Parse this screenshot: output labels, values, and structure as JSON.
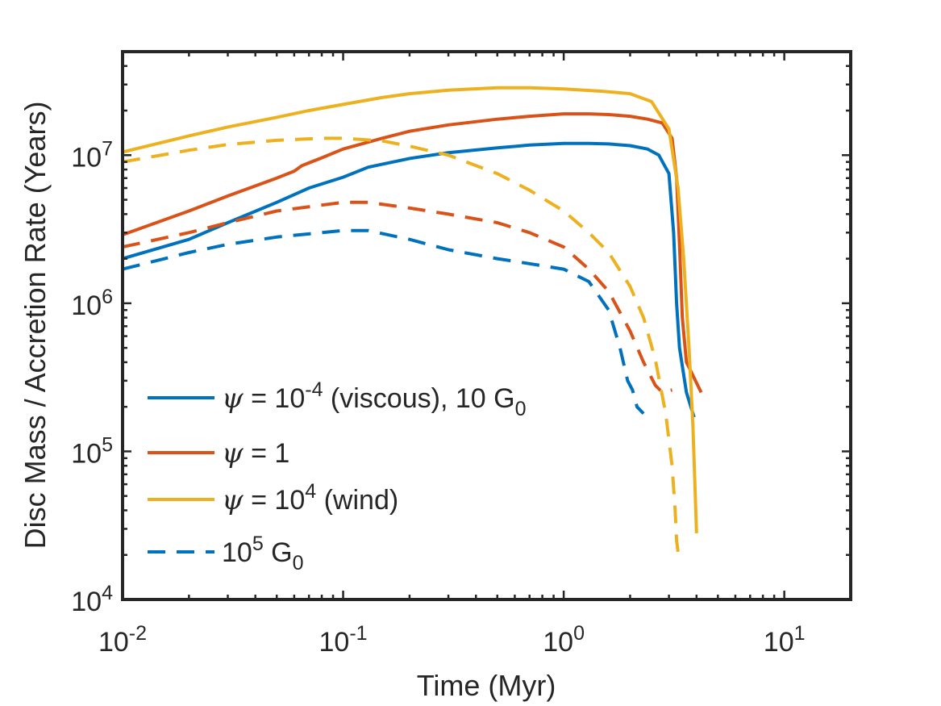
{
  "chart_data": {
    "type": "line",
    "xscale": "log",
    "yscale": "log",
    "xlim": [
      0.01,
      20
    ],
    "ylim": [
      10000,
      50000000
    ],
    "xlabel": "Time (Myr)",
    "ylabel": "Disc Mass / Accretion Rate (Years)",
    "xticks": [
      {
        "value": 0.01,
        "base": "10",
        "exp": "-2"
      },
      {
        "value": 0.1,
        "base": "10",
        "exp": "-1"
      },
      {
        "value": 1,
        "base": "10",
        "exp": "0"
      },
      {
        "value": 10,
        "base": "10",
        "exp": "1"
      }
    ],
    "yticks": [
      {
        "value": 10000,
        "base": "10",
        "exp": "4"
      },
      {
        "value": 100000,
        "base": "10",
        "exp": "5"
      },
      {
        "value": 1000000,
        "base": "10",
        "exp": "6"
      },
      {
        "value": 10000000,
        "base": "10",
        "exp": "7"
      }
    ],
    "colors": {
      "viscous": "#0072BD",
      "psi1": "#D95319",
      "wind": "#EDB120",
      "axis": "#262626"
    },
    "series": [
      {
        "name": "viscous-10G0",
        "color": "#0072BD",
        "dash": "solid",
        "x": [
          0.01,
          0.02,
          0.03,
          0.05,
          0.07,
          0.1,
          0.13,
          0.2,
          0.3,
          0.5,
          0.7,
          1.0,
          1.3,
          1.6,
          2.0,
          2.4,
          2.7,
          3.0,
          3.15,
          3.25,
          3.35,
          3.6,
          3.9
        ],
        "y": [
          2000000,
          2700000,
          3500000,
          4800000,
          6000000,
          7100000,
          8300000,
          9500000,
          10400000,
          11200000,
          11700000,
          12000000,
          12000000,
          11900000,
          11600000,
          11000000,
          10000000,
          7500000,
          3000000,
          1000000,
          500000,
          250000,
          170000
        ]
      },
      {
        "name": "psi1-10G0",
        "color": "#D95319",
        "dash": "solid",
        "x": [
          0.01,
          0.02,
          0.03,
          0.05,
          0.06,
          0.065,
          0.08,
          0.1,
          0.15,
          0.2,
          0.3,
          0.5,
          0.7,
          1.0,
          1.3,
          1.6,
          2.0,
          2.4,
          2.8,
          3.1,
          3.25,
          3.35,
          3.45,
          3.6,
          4.2
        ],
        "y": [
          2900000,
          4200000,
          5300000,
          7000000,
          7800000,
          8500000,
          9600000,
          11000000,
          13000000,
          14500000,
          16000000,
          17500000,
          18300000,
          19000000,
          19000000,
          18800000,
          18300000,
          17500000,
          16500000,
          13000000,
          7000000,
          2500000,
          800000,
          400000,
          250000
        ]
      },
      {
        "name": "wind-10G0",
        "color": "#EDB120",
        "dash": "solid",
        "x": [
          0.01,
          0.02,
          0.03,
          0.05,
          0.07,
          0.1,
          0.15,
          0.2,
          0.3,
          0.5,
          0.7,
          1.0,
          1.5,
          2.0,
          2.5,
          3.0,
          3.3,
          3.5,
          3.7,
          3.85,
          3.95,
          4.0
        ],
        "y": [
          10500000,
          13500000,
          15500000,
          18000000,
          20000000,
          22000000,
          24500000,
          26000000,
          27500000,
          28500000,
          28500000,
          28000000,
          27000000,
          26000000,
          23000000,
          15000000,
          6000000,
          2000000,
          500000,
          150000,
          50000,
          28000
        ]
      },
      {
        "name": "viscous-1e5G0",
        "color": "#0072BD",
        "dash": "dashed",
        "x": [
          0.01,
          0.02,
          0.03,
          0.05,
          0.08,
          0.1,
          0.13,
          0.2,
          0.3,
          0.5,
          0.7,
          1.0,
          1.3,
          1.6,
          1.8,
          1.95,
          2.05,
          2.15,
          2.3
        ],
        "y": [
          1700000,
          2200000,
          2500000,
          2800000,
          3000000,
          3100000,
          3100000,
          2700000,
          2300000,
          2000000,
          1850000,
          1700000,
          1400000,
          900000,
          500000,
          300000,
          260000,
          200000,
          180000
        ]
      },
      {
        "name": "psi1-1e5G0",
        "color": "#D95319",
        "dash": "dashed",
        "x": [
          0.01,
          0.02,
          0.03,
          0.05,
          0.08,
          0.1,
          0.13,
          0.2,
          0.3,
          0.5,
          0.7,
          1.0,
          1.3,
          1.6,
          2.0,
          2.3,
          2.6,
          2.8,
          3.1
        ],
        "y": [
          2400000,
          3000000,
          3500000,
          4200000,
          4600000,
          4800000,
          4800000,
          4400000,
          4000000,
          3500000,
          3000000,
          2400000,
          1700000,
          1200000,
          650000,
          400000,
          280000,
          250000,
          260000
        ]
      },
      {
        "name": "wind-1e5G0",
        "color": "#EDB120",
        "dash": "dashed",
        "x": [
          0.01,
          0.02,
          0.03,
          0.05,
          0.08,
          0.1,
          0.15,
          0.2,
          0.3,
          0.5,
          0.7,
          1.0,
          1.3,
          1.6,
          2.0,
          2.3,
          2.6,
          2.9,
          3.1,
          3.2,
          3.25,
          3.3
        ],
        "y": [
          9000000,
          10800000,
          11800000,
          12600000,
          13000000,
          13000000,
          12500000,
          11500000,
          10000000,
          7500000,
          5800000,
          4200000,
          3000000,
          2200000,
          1300000,
          800000,
          420000,
          180000,
          80000,
          40000,
          25000,
          21000
        ]
      }
    ],
    "legend": {
      "placement": "lower-left",
      "entries": [
        {
          "symbol": "ψ",
          "equals": " = ",
          "base": "10",
          "sup": "-4",
          "after": " (viscous), 10 G",
          "sub": "0",
          "color": "#0072BD",
          "dash": "solid"
        },
        {
          "symbol": "ψ",
          "equals": " = ",
          "base": "1",
          "sup": "",
          "after": "",
          "sub": "",
          "color": "#D95319",
          "dash": "solid"
        },
        {
          "symbol": "ψ",
          "equals": " = ",
          "base": "10",
          "sup": "4",
          "after": " (wind)",
          "sub": "",
          "color": "#EDB120",
          "dash": "solid"
        },
        {
          "symbol": "",
          "equals": "",
          "base": "10",
          "sup": "5",
          "after": " G",
          "sub": "0",
          "color": "#0072BD",
          "dash": "dashed"
        }
      ]
    }
  }
}
